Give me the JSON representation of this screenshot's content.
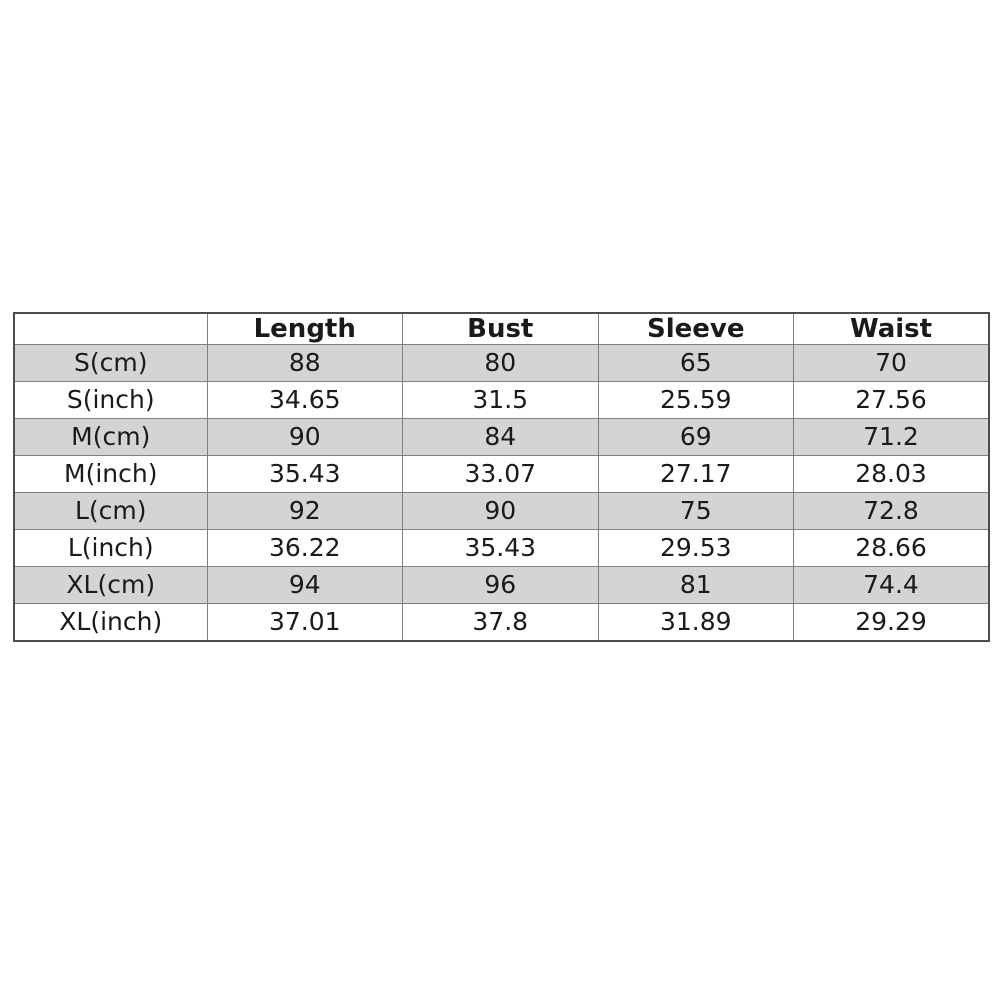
{
  "chart_data": {
    "type": "table",
    "title": "",
    "columns": [
      "",
      "Length",
      "Bust",
      "Sleeve",
      "Waist"
    ],
    "rows": [
      [
        "S(cm)",
        88,
        80,
        65,
        70
      ],
      [
        "S(inch)",
        34.65,
        31.5,
        25.59,
        27.56
      ],
      [
        "M(cm)",
        90,
        84,
        69,
        71.2
      ],
      [
        "M(inch)",
        35.43,
        33.07,
        27.17,
        28.03
      ],
      [
        "L(cm)",
        92,
        90,
        75,
        72.8
      ],
      [
        "L(inch)",
        36.22,
        35.43,
        29.53,
        28.66
      ],
      [
        "XL(cm)",
        94,
        96,
        81,
        74.4
      ],
      [
        "XL(inch)",
        37.01,
        37.8,
        31.89,
        29.29
      ]
    ],
    "layout": {
      "striped_rows": "cm rows shaded, inch rows white",
      "grid": true,
      "header_bold": true
    }
  },
  "colors": {
    "row_shaded": "#d4d4d4",
    "row_plain": "#ffffff",
    "grid_line": "#7f7f7f",
    "outer_border": "#4d4d4d",
    "text": "#1a1a1a",
    "background": "#ffffff"
  }
}
